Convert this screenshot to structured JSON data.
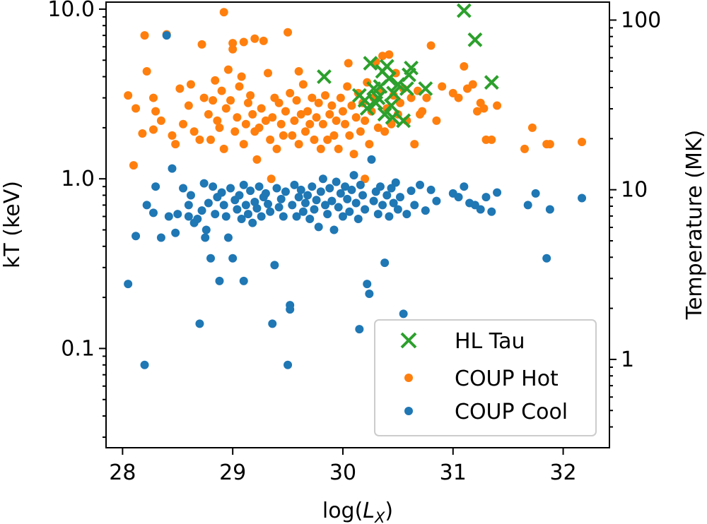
{
  "chart_data": {
    "type": "scatter",
    "xlabel": "log(L_X)",
    "xlabel_main": "log(",
    "xlabel_sym": "L",
    "xlabel_sub": "X",
    "xlabel_close": ")",
    "ylabel": "kT (keV)",
    "y2label": "Temperature (MK)",
    "xlim": [
      27.85,
      32.42
    ],
    "ylim": [
      0.026,
      11.0
    ],
    "y_scale": "log",
    "y2_scale": "log",
    "y2_conversion": "1 keV = 11.6 MK",
    "x_ticks": [
      28,
      29,
      30,
      31,
      32
    ],
    "x_tick_labels": [
      "28",
      "29",
      "30",
      "31",
      "32"
    ],
    "y_ticks": [
      0.1,
      1.0,
      10.0
    ],
    "y_tick_labels": [
      "0.1",
      "1.0",
      "10.0"
    ],
    "y2_ticks": [
      1,
      10,
      100
    ],
    "y2_tick_labels": [
      "1",
      "10",
      "100"
    ],
    "grid": false,
    "legend": "lower-right",
    "legend_entries": [
      "HL Tau",
      "COUP Hot",
      "COUP Cool"
    ],
    "colors": {
      "hl_tau": "#2ca02c",
      "coup_hot": "#ff7f0e",
      "coup_cool": "#1f77b4"
    },
    "series": [
      {
        "name": "COUP Hot",
        "marker": "circle",
        "color": "#ff7f0e",
        "points": [
          [
            28.05,
            3.1
          ],
          [
            28.12,
            2.6
          ],
          [
            28.2,
            7.0
          ],
          [
            28.22,
            4.3
          ],
          [
            28.28,
            3.0
          ],
          [
            28.3,
            2.5
          ],
          [
            28.18,
            1.85
          ],
          [
            28.28,
            1.95
          ],
          [
            28.35,
            2.2
          ],
          [
            28.4,
            7.1
          ],
          [
            28.45,
            1.8
          ],
          [
            28.48,
            1.6
          ],
          [
            28.52,
            3.4
          ],
          [
            28.55,
            2.1
          ],
          [
            28.6,
            2.7
          ],
          [
            28.62,
            3.6
          ],
          [
            28.65,
            1.9
          ],
          [
            28.7,
            1.7
          ],
          [
            28.72,
            6.2
          ],
          [
            28.74,
            3.0
          ],
          [
            28.78,
            2.4
          ],
          [
            28.8,
            1.7
          ],
          [
            28.82,
            2.9
          ],
          [
            28.84,
            3.8
          ],
          [
            28.86,
            2.2
          ],
          [
            28.88,
            2.0
          ],
          [
            28.9,
            3.3
          ],
          [
            28.92,
            1.5
          ],
          [
            28.94,
            2.6
          ],
          [
            28.96,
            4.4
          ],
          [
            28.98,
            2.9
          ],
          [
            29.0,
            5.8
          ],
          [
            29.02,
            1.9
          ],
          [
            29.04,
            2.3
          ],
          [
            29.06,
            3.5
          ],
          [
            29.08,
            4.0
          ],
          [
            29.1,
            1.6
          ],
          [
            29.12,
            2.1
          ],
          [
            29.14,
            2.8
          ],
          [
            29.16,
            3.1
          ],
          [
            29.18,
            2.4
          ],
          [
            29.2,
            1.9
          ],
          [
            29.22,
            1.3
          ],
          [
            29.24,
            2.0
          ],
          [
            29.26,
            2.6
          ],
          [
            29.28,
            6.5
          ],
          [
            29.3,
            2.2
          ],
          [
            29.32,
            4.2
          ],
          [
            29.34,
            1.7
          ],
          [
            29.36,
            2.3
          ],
          [
            29.38,
            3.0
          ],
          [
            29.4,
            1.5
          ],
          [
            29.42,
            2.8
          ],
          [
            29.44,
            2.1
          ],
          [
            29.46,
            1.8
          ],
          [
            29.48,
            2.5
          ],
          [
            29.5,
            7.3
          ],
          [
            29.52,
            3.2
          ],
          [
            29.54,
            1.8
          ],
          [
            29.56,
            2.2
          ],
          [
            29.58,
            2.9
          ],
          [
            29.6,
            1.6
          ],
          [
            29.62,
            2.4
          ],
          [
            29.64,
            3.6
          ],
          [
            29.66,
            1.9
          ],
          [
            29.68,
            2.5
          ],
          [
            29.7,
            2.1
          ],
          [
            29.72,
            3.0
          ],
          [
            29.74,
            1.7
          ],
          [
            29.76,
            2.3
          ],
          [
            29.78,
            2.8
          ],
          [
            29.8,
            1.5
          ],
          [
            29.82,
            2.1
          ],
          [
            29.84,
            3.1
          ],
          [
            29.86,
            1.7
          ],
          [
            29.88,
            2.4
          ],
          [
            29.9,
            2.7
          ],
          [
            29.92,
            1.8
          ],
          [
            29.94,
            2.2
          ],
          [
            29.96,
            1.5
          ],
          [
            29.98,
            3.0
          ],
          [
            30.0,
            2.5
          ],
          [
            30.02,
            2.1
          ],
          [
            30.04,
            3.5
          ],
          [
            30.06,
            1.8
          ],
          [
            30.08,
            2.7
          ],
          [
            30.1,
            1.4
          ],
          [
            30.12,
            2.3
          ],
          [
            30.14,
            3.2
          ],
          [
            30.16,
            1.9
          ],
          [
            30.18,
            2.8
          ],
          [
            30.2,
            2.2
          ],
          [
            30.22,
            3.7
          ],
          [
            30.24,
            1.6
          ],
          [
            30.26,
            2.5
          ],
          [
            30.28,
            3.0
          ],
          [
            30.3,
            4.9
          ],
          [
            30.32,
            2.0
          ],
          [
            30.34,
            3.3
          ],
          [
            30.36,
            5.3
          ],
          [
            30.38,
            1.9
          ],
          [
            30.4,
            2.6
          ],
          [
            30.42,
            5.4
          ],
          [
            30.44,
            2.1
          ],
          [
            30.46,
            3.1
          ],
          [
            30.48,
            4.2
          ],
          [
            30.5,
            2.4
          ],
          [
            30.52,
            2.8
          ],
          [
            30.55,
            3.4
          ],
          [
            30.58,
            2.2
          ],
          [
            30.62,
            3.0
          ],
          [
            30.65,
            1.6
          ],
          [
            30.68,
            3.3
          ],
          [
            30.72,
            2.5
          ],
          [
            30.76,
            3.0
          ],
          [
            30.8,
            6.1
          ],
          [
            30.85,
            2.2
          ],
          [
            30.9,
            3.5
          ],
          [
            31.0,
            3.2
          ],
          [
            31.05,
            3.0
          ],
          [
            31.1,
            4.6
          ],
          [
            31.13,
            3.4
          ],
          [
            31.18,
            3.6
          ],
          [
            31.22,
            2.5
          ],
          [
            31.25,
            2.8
          ],
          [
            31.28,
            2.6
          ],
          [
            31.3,
            1.7
          ],
          [
            31.35,
            1.7
          ],
          [
            31.4,
            2.7
          ],
          [
            31.65,
            1.5
          ],
          [
            31.72,
            2.0
          ],
          [
            31.85,
            1.6
          ],
          [
            31.88,
            1.6
          ],
          [
            32.17,
            1.65
          ],
          [
            28.92,
            9.6
          ],
          [
            28.1,
            1.2
          ],
          [
            29.0,
            6.3
          ],
          [
            29.2,
            6.7
          ],
          [
            29.1,
            6.4
          ],
          [
            29.35,
            1.0
          ],
          [
            29.6,
            4.3
          ],
          [
            30.05,
            4.8
          ],
          [
            30.2,
            1.0
          ],
          [
            30.7,
            2.4
          ]
        ]
      },
      {
        "name": "COUP Cool",
        "marker": "circle",
        "color": "#1f77b4",
        "points": [
          [
            28.05,
            0.24
          ],
          [
            28.12,
            0.46
          ],
          [
            28.2,
            0.08
          ],
          [
            28.22,
            0.7
          ],
          [
            28.28,
            0.63
          ],
          [
            28.3,
            0.9
          ],
          [
            28.35,
            0.45
          ],
          [
            28.4,
            7.0
          ],
          [
            28.42,
            0.6
          ],
          [
            28.45,
            1.15
          ],
          [
            28.48,
            0.48
          ],
          [
            28.5,
            0.62
          ],
          [
            28.55,
            0.88
          ],
          [
            28.6,
            0.7
          ],
          [
            28.62,
            0.8
          ],
          [
            28.65,
            0.55
          ],
          [
            28.68,
            0.58
          ],
          [
            28.7,
            0.14
          ],
          [
            28.72,
            0.65
          ],
          [
            28.74,
            0.94
          ],
          [
            28.76,
            0.5
          ],
          [
            28.78,
            0.72
          ],
          [
            28.8,
            0.34
          ],
          [
            28.82,
            0.9
          ],
          [
            28.84,
            0.62
          ],
          [
            28.86,
            0.78
          ],
          [
            28.88,
            0.25
          ],
          [
            28.9,
            0.83
          ],
          [
            28.92,
            0.7
          ],
          [
            28.94,
            0.6
          ],
          [
            28.96,
            0.45
          ],
          [
            28.98,
            0.88
          ],
          [
            29.0,
            0.34
          ],
          [
            29.02,
            0.75
          ],
          [
            29.04,
            0.66
          ],
          [
            29.06,
            0.8
          ],
          [
            29.08,
            0.58
          ],
          [
            29.1,
            0.92
          ],
          [
            29.12,
            0.7
          ],
          [
            29.14,
            0.62
          ],
          [
            29.16,
            0.85
          ],
          [
            29.18,
            0.55
          ],
          [
            29.2,
            0.73
          ],
          [
            29.22,
            0.67
          ],
          [
            29.24,
            0.9
          ],
          [
            29.26,
            0.6
          ],
          [
            29.28,
            0.78
          ],
          [
            29.3,
            0.82
          ],
          [
            29.32,
            0.71
          ],
          [
            29.34,
            0.64
          ],
          [
            29.36,
            0.14
          ],
          [
            29.38,
            0.31
          ],
          [
            29.4,
            0.88
          ],
          [
            29.42,
            0.68
          ],
          [
            29.44,
            0.76
          ],
          [
            29.46,
            0.6
          ],
          [
            29.48,
            0.84
          ],
          [
            29.5,
            0.08
          ],
          [
            29.52,
            0.18
          ],
          [
            29.52,
            0.17
          ],
          [
            29.54,
            0.7
          ],
          [
            29.56,
            0.92
          ],
          [
            29.58,
            0.6
          ],
          [
            29.6,
            0.78
          ],
          [
            29.62,
            0.86
          ],
          [
            29.64,
            0.64
          ],
          [
            29.66,
            0.72
          ],
          [
            29.68,
            0.8
          ],
          [
            29.7,
            0.58
          ],
          [
            29.72,
            0.9
          ],
          [
            29.74,
            0.66
          ],
          [
            29.76,
            0.75
          ],
          [
            29.78,
            0.52
          ],
          [
            29.8,
            0.84
          ],
          [
            29.82,
            1.0
          ],
          [
            29.84,
            0.7
          ],
          [
            29.86,
            0.62
          ],
          [
            29.88,
            0.88
          ],
          [
            29.9,
            0.74
          ],
          [
            29.92,
            0.5
          ],
          [
            29.94,
            0.96
          ],
          [
            29.96,
            0.68
          ],
          [
            29.98,
            0.82
          ],
          [
            30.0,
            0.6
          ],
          [
            30.02,
            0.9
          ],
          [
            30.04,
            0.76
          ],
          [
            30.06,
            0.64
          ],
          [
            30.08,
            0.86
          ],
          [
            30.1,
            1.05
          ],
          [
            30.12,
            0.72
          ],
          [
            30.14,
            0.58
          ],
          [
            30.16,
            0.92
          ],
          [
            30.18,
            0.8
          ],
          [
            30.2,
            0.66
          ],
          [
            30.22,
            0.24
          ],
          [
            30.24,
            0.21
          ],
          [
            30.26,
            1.3
          ],
          [
            30.28,
            0.74
          ],
          [
            30.3,
            0.84
          ],
          [
            30.32,
            0.62
          ],
          [
            30.34,
            0.9
          ],
          [
            30.36,
            0.7
          ],
          [
            30.38,
            0.32
          ],
          [
            30.4,
            0.8
          ],
          [
            30.42,
            0.6
          ],
          [
            30.44,
            0.88
          ],
          [
            30.46,
            0.72
          ],
          [
            30.48,
            0.95
          ],
          [
            30.5,
            0.66
          ],
          [
            30.52,
            0.78
          ],
          [
            30.55,
            0.16
          ],
          [
            30.58,
            0.62
          ],
          [
            30.62,
            0.85
          ],
          [
            30.65,
            0.7
          ],
          [
            30.7,
            0.92
          ],
          [
            30.75,
            0.65
          ],
          [
            30.8,
            0.86
          ],
          [
            30.85,
            0.74
          ],
          [
            31.0,
            0.82
          ],
          [
            31.05,
            0.78
          ],
          [
            31.1,
            0.9
          ],
          [
            31.15,
            0.72
          ],
          [
            31.2,
            0.7
          ],
          [
            31.25,
            0.66
          ],
          [
            31.3,
            0.78
          ],
          [
            31.35,
            0.64
          ],
          [
            31.4,
            0.83
          ],
          [
            31.68,
            0.7
          ],
          [
            31.75,
            0.82
          ],
          [
            31.85,
            0.34
          ],
          [
            31.88,
            0.66
          ],
          [
            32.17,
            0.77
          ],
          [
            30.15,
            0.13
          ],
          [
            28.75,
            0.45
          ],
          [
            28.6,
            0.6
          ],
          [
            29.1,
            0.25
          ]
        ]
      },
      {
        "name": "HL Tau",
        "marker": "x",
        "color": "#2ca02c",
        "points": [
          [
            29.83,
            4.0
          ],
          [
            30.15,
            3.1
          ],
          [
            30.2,
            2.9
          ],
          [
            30.22,
            2.6
          ],
          [
            30.25,
            4.8
          ],
          [
            30.28,
            3.4
          ],
          [
            30.3,
            2.8
          ],
          [
            30.32,
            3.0
          ],
          [
            30.34,
            3.5
          ],
          [
            30.36,
            4.3
          ],
          [
            30.38,
            2.4
          ],
          [
            30.4,
            4.6
          ],
          [
            30.42,
            3.9
          ],
          [
            30.44,
            2.7
          ],
          [
            30.46,
            3.2
          ],
          [
            30.5,
            3.6
          ],
          [
            30.55,
            2.2
          ],
          [
            30.58,
            3.4
          ],
          [
            30.6,
            4.1
          ],
          [
            30.62,
            4.5
          ],
          [
            30.75,
            3.4
          ],
          [
            31.1,
            9.8
          ],
          [
            31.2,
            6.6
          ],
          [
            31.35,
            3.7
          ],
          [
            30.45,
            2.3
          ]
        ]
      }
    ]
  }
}
